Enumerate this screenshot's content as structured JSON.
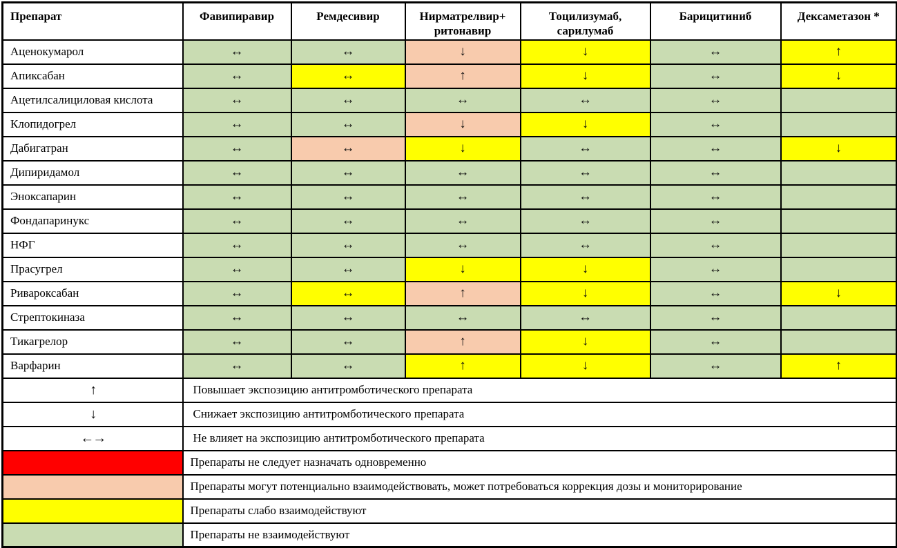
{
  "header": {
    "columns": [
      "Препарат",
      "Фавипиравир",
      "Ремдесивир",
      "Нирматрелвир+\nритонавир",
      "Тоцилизумаб,\nсарилумаб",
      "Барицитиниб",
      "Дексаметазон *"
    ]
  },
  "matrix": {
    "rows": [
      {
        "drug": "Аценокумарол",
        "cells": [
          "green:same",
          "green:same",
          "peach:down",
          "yellow:down",
          "green:same",
          "yellow:up"
        ]
      },
      {
        "drug": "Апиксабан",
        "cells": [
          "green:same",
          "yellow:same",
          "peach:up",
          "yellow:down",
          "green:same",
          "yellow:down"
        ]
      },
      {
        "drug": "Ацетилсалициловая кислота",
        "cells": [
          "green:same",
          "green:same",
          "green:same",
          "green:same",
          "green:same",
          "green:none"
        ]
      },
      {
        "drug": "Клопидогрел",
        "cells": [
          "green:same",
          "green:same",
          "peach:down",
          "yellow:down",
          "green:same",
          "green:none"
        ]
      },
      {
        "drug": "Дабигатран",
        "cells": [
          "green:same",
          "peach:same",
          "yellow:down",
          "green:same",
          "green:same",
          "yellow:down"
        ]
      },
      {
        "drug": "Дипиридамол",
        "cells": [
          "green:same",
          "green:same",
          "green:same",
          "green:same",
          "green:same",
          "green:none"
        ]
      },
      {
        "drug": "Эноксапарин",
        "cells": [
          "green:same",
          "green:same",
          "green:same",
          "green:same",
          "green:same",
          "green:none"
        ]
      },
      {
        "drug": "Фондапаринукс",
        "cells": [
          "green:same",
          "green:same",
          "green:same",
          "green:same",
          "green:same",
          "green:none"
        ]
      },
      {
        "drug": "НФГ",
        "cells": [
          "green:same",
          "green:same",
          "green:same",
          "green:same",
          "green:same",
          "green:none"
        ]
      },
      {
        "drug": "Прасугрел",
        "cells": [
          "green:same",
          "green:same",
          "yellow:down",
          "yellow:down",
          "green:same",
          "green:none"
        ]
      },
      {
        "drug": "Ривароксабан",
        "cells": [
          "green:same",
          "yellow:same",
          "peach:up",
          "yellow:down",
          "green:same",
          "yellow:down"
        ]
      },
      {
        "drug": "Стрептокиназа",
        "cells": [
          "green:same",
          "green:same",
          "green:same",
          "green:same",
          "green:same",
          "green:none"
        ]
      },
      {
        "drug": "Тикагрелор",
        "cells": [
          "green:same",
          "green:same",
          "peach:up",
          "yellow:down",
          "green:same",
          "green:none"
        ]
      },
      {
        "drug": "Варфарин",
        "cells": [
          "green:same",
          "green:same",
          "yellow:up",
          "yellow:down",
          "green:same",
          "yellow:up"
        ]
      }
    ]
  },
  "legend": {
    "symbol_rows": [
      {
        "name": "up-arrow",
        "glyph": "↑",
        "text": "Повышает экспозицию антитромботического препарата"
      },
      {
        "name": "down-arrow",
        "glyph": "↓",
        "text": "Снижает экспозицию антитромботического препарата"
      },
      {
        "name": "left-right-arrow",
        "glyph": "←→",
        "text": "Не влияет на экспозицию антитромботического препарата"
      }
    ],
    "color_rows": [
      {
        "color": "red",
        "text": "Препараты не следует назначать одновременно"
      },
      {
        "color": "peach",
        "text": "Препараты могут потенциально взаимодействовать, может потребоваться коррекция дозы и мониторирование"
      },
      {
        "color": "yellow",
        "text": "Препараты слабо взаимодействуют"
      },
      {
        "color": "green",
        "text": "Препараты не взаимодействуют"
      }
    ]
  },
  "colors": {
    "green": "#c9dcb2",
    "yellow": "#ffff00",
    "peach": "#f8cbad",
    "red": "#ff0000"
  },
  "symbols": {
    "same": "↔",
    "up": "↑",
    "down": "↓",
    "none": ""
  }
}
